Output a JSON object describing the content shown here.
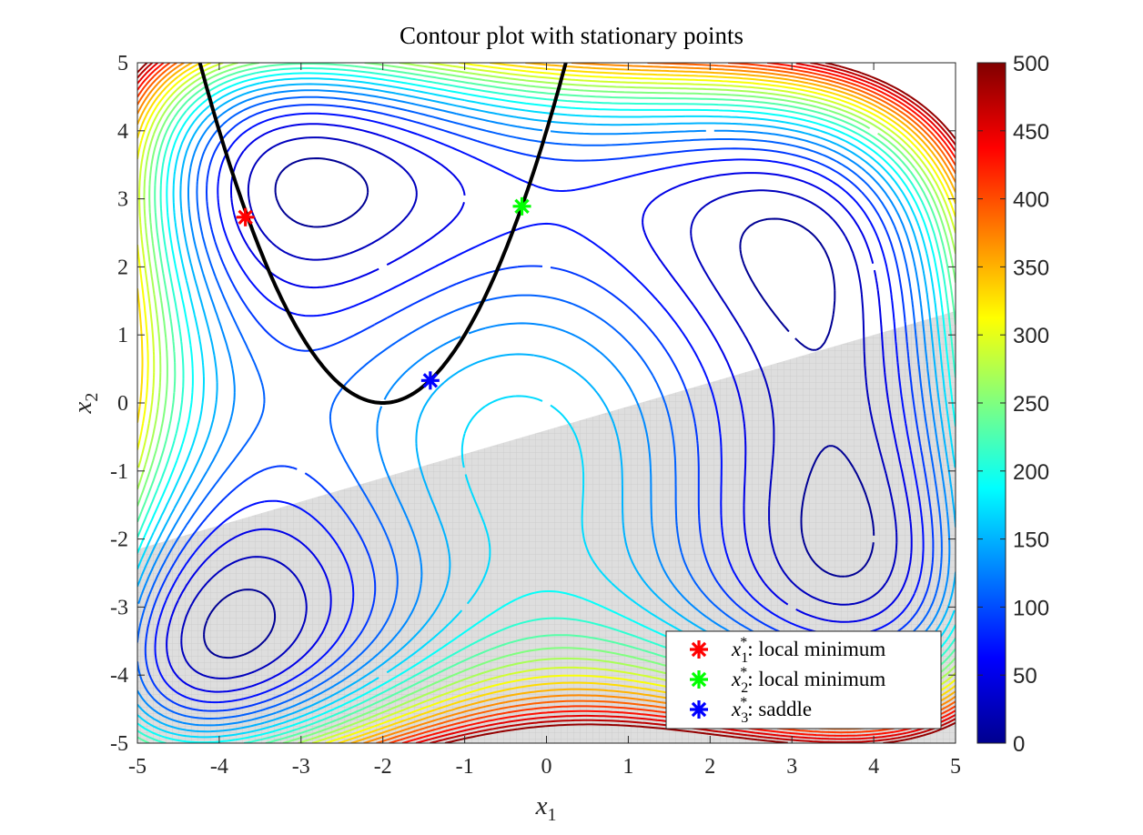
{
  "chart_data": {
    "type": "contour",
    "title": "Contour plot with stationary points",
    "xlabel": "x",
    "xlabel_sub": "1",
    "ylabel": "x",
    "ylabel_sub": "2",
    "xlim": [
      -5,
      5
    ],
    "ylim": [
      -5,
      5
    ],
    "x_ticks": [
      "-5",
      "-4",
      "-3",
      "-2",
      "-1",
      "0",
      "1",
      "2",
      "3",
      "4",
      "5"
    ],
    "y_ticks": [
      "-5",
      "-4",
      "-3",
      "-2",
      "-1",
      "0",
      "1",
      "2",
      "3",
      "4",
      "5"
    ],
    "function": "(x1^2 + x2 - 11)^2 + (x1 + x2^2 - 7)^2",
    "contour_levels": [
      10,
      30,
      50,
      70,
      90,
      110,
      130,
      150,
      170,
      190,
      210,
      230,
      250,
      270,
      290,
      310,
      330,
      350,
      370,
      390,
      410,
      430,
      450,
      470,
      490
    ],
    "colormap": "jet",
    "colorbar": {
      "range": [
        0,
        500
      ],
      "ticks": [
        "0",
        "50",
        "100",
        "150",
        "200",
        "250",
        "300",
        "350",
        "400",
        "450",
        "500"
      ]
    },
    "constraint_curve": {
      "label": "x2 = (x1 + 2)^2",
      "color": "#000000",
      "x_range": [
        -4.3,
        0.3
      ]
    },
    "infeasible_region": {
      "description": "x2 <= 0.35*x1 - 0.4",
      "color": "#dcdcdc"
    },
    "points": [
      {
        "x": -3.68,
        "y": 2.73,
        "color": "#ff0000",
        "sub": "1",
        "label": ": local minimum"
      },
      {
        "x": -0.3,
        "y": 2.89,
        "color": "#00ff00",
        "sub": "2",
        "label": ": local minimum"
      },
      {
        "x": -1.42,
        "y": 0.33,
        "color": "#0000ff",
        "sub": "3",
        "label": ": saddle"
      }
    ],
    "legend_position": "bottom-right",
    "grid": false
  }
}
